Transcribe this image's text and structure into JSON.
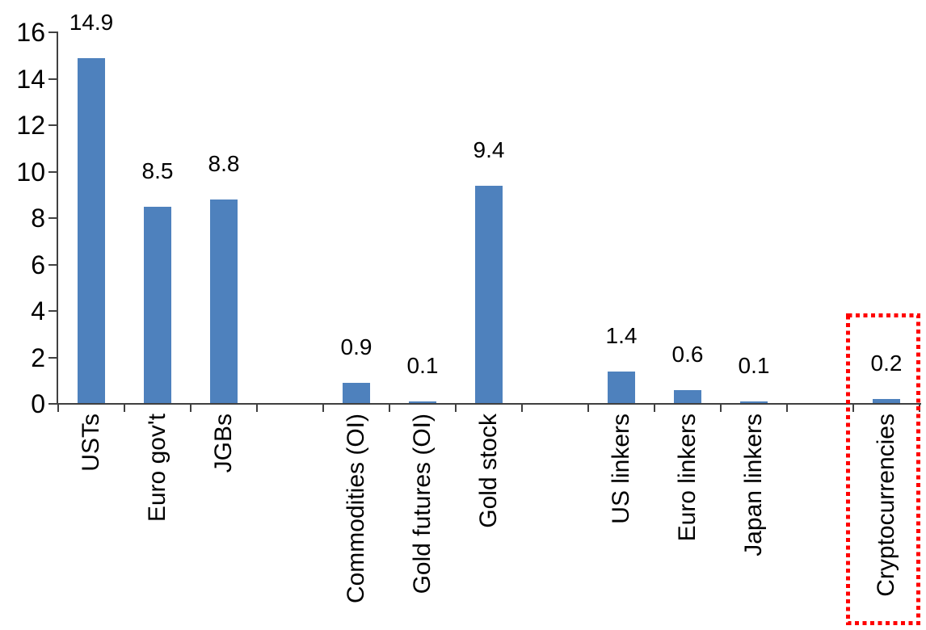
{
  "chart_data": {
    "type": "bar",
    "title": "",
    "xlabel": "",
    "ylabel": "",
    "categories": [
      "USTs",
      "Euro gov't",
      "JGBs",
      "",
      "Commodities (OI)",
      "Gold futures (OI)",
      "Gold stock",
      "",
      "US linkers",
      "Euro linkers",
      "Japan linkers",
      "",
      "Cryptocurrencies"
    ],
    "values": [
      14.9,
      8.5,
      8.8,
      null,
      0.9,
      0.1,
      9.4,
      null,
      1.4,
      0.6,
      0.1,
      null,
      0.2
    ],
    "ylim": [
      0,
      16
    ],
    "yticks": [
      0,
      2,
      4,
      6,
      8,
      10,
      12,
      14,
      16
    ],
    "grid": false,
    "legend_position": "none",
    "bar_color": "#4E81BD",
    "axis_color": "#404040",
    "text_color": "#000000",
    "highlight": {
      "categories": [
        "Cryptocurrencies"
      ],
      "style": "red-dotted-rectangle",
      "color": "#FF0000"
    }
  }
}
